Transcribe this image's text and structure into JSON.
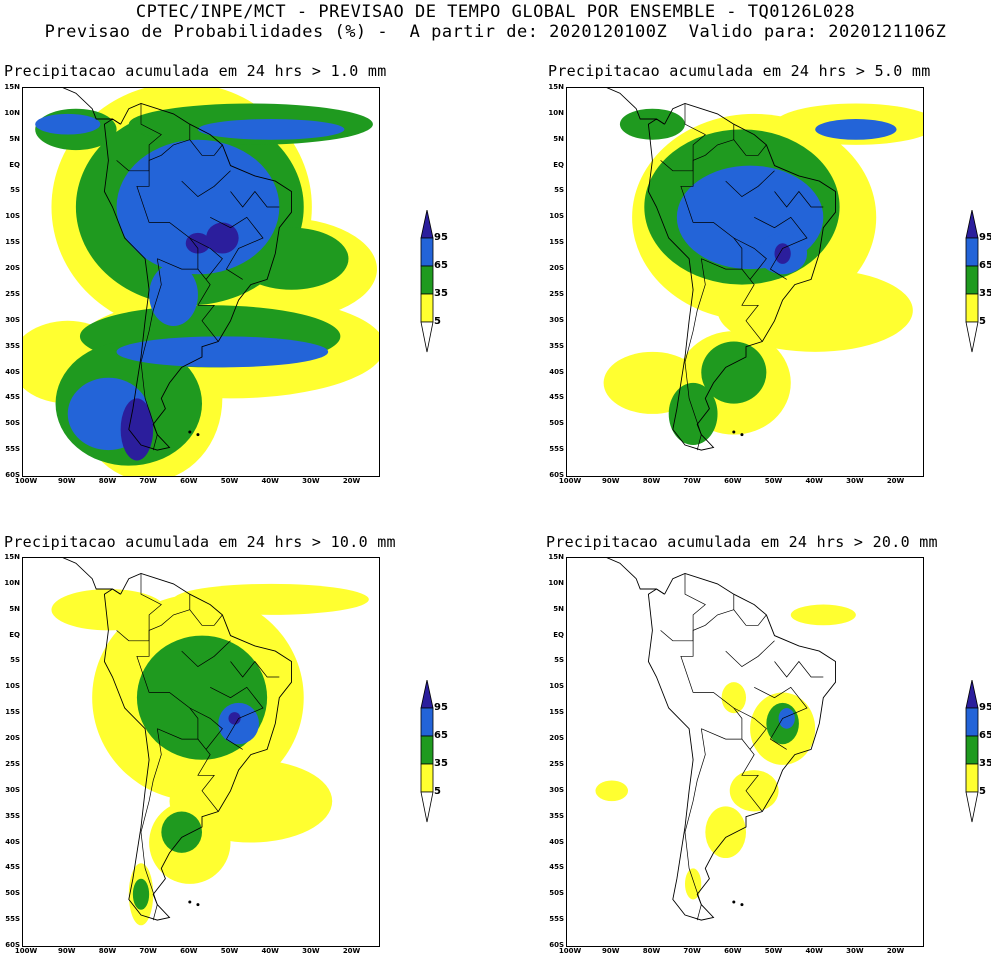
{
  "header": {
    "line1": "CPTEC/INPE/MCT - PREVISAO DE TEMPO GLOBAL POR ENSEMBLE - TQ0126L028",
    "line2": "Previsao de Probabilidades (%) -  A partir de: 2020120100Z  Valido para: 2020121106Z"
  },
  "axes": {
    "y_ticks": [
      "15N",
      "10N",
      "5N",
      "EQ",
      "5S",
      "10S",
      "15S",
      "20S",
      "25S",
      "30S",
      "35S",
      "40S",
      "45S",
      "50S",
      "55S",
      "60S"
    ],
    "x_ticks": [
      "100W",
      "90W",
      "80W",
      "70W",
      "60W",
      "50W",
      "40W",
      "30W",
      "20W"
    ]
  },
  "legend": {
    "labels": [
      "95",
      "65",
      "35",
      "5"
    ],
    "colors": {
      "c95": "#2b1e9c",
      "c65": "#2364d8",
      "c35": "#1f9a1f",
      "c5": "#ffff30"
    }
  },
  "panels": [
    {
      "title": "Precipitacao acumulada em 24 hrs > 1.0 mm",
      "level": 0
    },
    {
      "title": "Precipitacao acumulada em 24 hrs > 5.0 mm",
      "level": 1
    },
    {
      "title": "Precipitacao acumulada em 24 hrs > 10.0 mm",
      "level": 2
    },
    {
      "title": "Precipitacao acumulada em 24 hrs > 20.0 mm",
      "level": 3
    }
  ]
}
